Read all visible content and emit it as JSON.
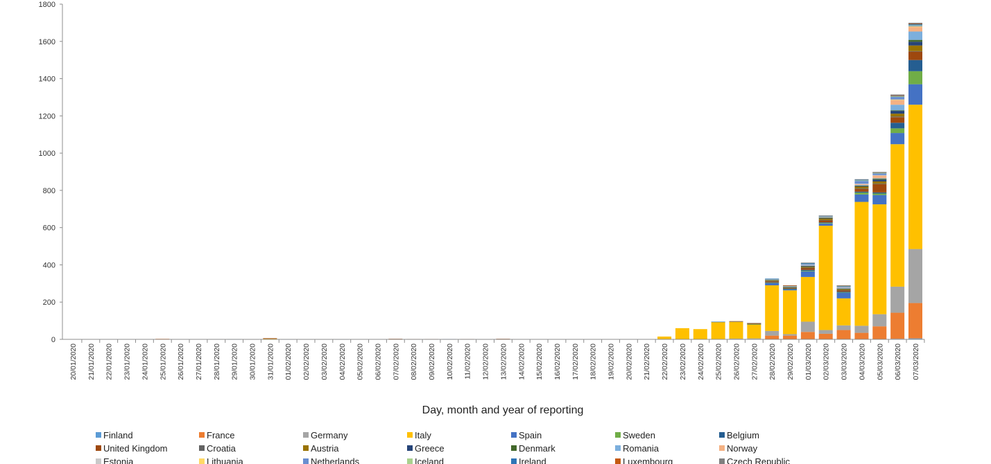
{
  "chart_data": {
    "type": "bar",
    "stacked": true,
    "title": "",
    "xlabel": "Day, month and year of reporting",
    "ylabel": "",
    "ylim": [
      0,
      1800
    ],
    "yticks": [
      0,
      200,
      400,
      600,
      800,
      1000,
      1200,
      1400,
      1600,
      1800
    ],
    "grid": false,
    "legend_position": "bottom",
    "categories": [
      "20/01/2020",
      "21/01/2020",
      "22/01/2020",
      "23/01/2020",
      "24/01/2020",
      "25/01/2020",
      "26/01/2020",
      "27/01/2020",
      "28/01/2020",
      "29/01/2020",
      "30/01/2020",
      "31/01/2020",
      "01/02/2020",
      "02/02/2020",
      "03/02/2020",
      "04/02/2020",
      "05/02/2020",
      "06/02/2020",
      "07/02/2020",
      "08/02/2020",
      "09/02/2020",
      "10/02/2020",
      "11/02/2020",
      "12/02/2020",
      "13/02/2020",
      "14/02/2020",
      "15/02/2020",
      "16/02/2020",
      "17/02/2020",
      "18/02/2020",
      "19/02/2020",
      "20/02/2020",
      "21/02/2020",
      "22/02/2020",
      "23/02/2020",
      "24/02/2020",
      "25/02/2020",
      "26/02/2020",
      "27/02/2020",
      "28/02/2020",
      "29/02/2020",
      "01/03/2020",
      "02/03/2020",
      "03/03/2020",
      "04/03/2020",
      "05/03/2020",
      "06/03/2020",
      "07/03/2020"
    ],
    "series": [
      {
        "name": "Finland",
        "color": "#5b9bd5",
        "values": [
          0,
          0,
          0,
          0,
          0,
          0,
          0,
          0,
          0,
          1,
          0,
          0,
          0,
          0,
          0,
          0,
          0,
          0,
          0,
          0,
          0,
          0,
          0,
          0,
          0,
          0,
          0,
          0,
          0,
          0,
          0,
          0,
          0,
          0,
          0,
          0,
          0,
          0,
          0,
          0,
          0,
          0,
          0,
          0,
          0,
          0,
          3,
          5
        ]
      },
      {
        "name": "France",
        "color": "#ed7d31",
        "values": [
          0,
          0,
          0,
          0,
          0,
          3,
          0,
          0,
          0,
          0,
          0,
          0,
          0,
          0,
          0,
          0,
          0,
          0,
          0,
          0,
          0,
          0,
          0,
          0,
          0,
          0,
          0,
          0,
          0,
          0,
          0,
          0,
          0,
          0,
          0,
          0,
          2,
          2,
          2,
          20,
          20,
          40,
          30,
          50,
          35,
          70,
          140,
          190
        ]
      },
      {
        "name": "Germany",
        "color": "#a5a5a5",
        "values": [
          0,
          0,
          0,
          0,
          0,
          0,
          0,
          0,
          2,
          1,
          1,
          2,
          0,
          1,
          1,
          0,
          0,
          0,
          1,
          1,
          1,
          1,
          1,
          1,
          1,
          0,
          0,
          0,
          0,
          0,
          0,
          0,
          0,
          0,
          0,
          0,
          0,
          2,
          3,
          25,
          8,
          55,
          20,
          25,
          38,
          65,
          140,
          290
        ]
      },
      {
        "name": "Italy",
        "color": "#ffc000",
        "values": [
          0,
          0,
          0,
          0,
          0,
          0,
          0,
          0,
          0,
          0,
          0,
          2,
          0,
          0,
          0,
          0,
          0,
          0,
          0,
          0,
          0,
          0,
          0,
          0,
          0,
          0,
          0,
          0,
          0,
          0,
          0,
          0,
          0,
          15,
          60,
          55,
          92,
          92,
          75,
          245,
          235,
          240,
          560,
          145,
          665,
          590,
          765,
          775
        ]
      },
      {
        "name": "Spain",
        "color": "#4472c4",
        "values": [
          0,
          0,
          0,
          0,
          0,
          0,
          0,
          0,
          0,
          0,
          0,
          0,
          1,
          0,
          0,
          0,
          0,
          0,
          0,
          0,
          0,
          1,
          0,
          0,
          0,
          0,
          0,
          0,
          0,
          0,
          0,
          0,
          0,
          0,
          0,
          0,
          1,
          1,
          2,
          12,
          6,
          30,
          12,
          32,
          40,
          50,
          60,
          110
        ]
      },
      {
        "name": "Sweden",
        "color": "#70ad47",
        "values": [
          0,
          0,
          0,
          0,
          0,
          0,
          0,
          0,
          0,
          0,
          0,
          0,
          0,
          0,
          0,
          0,
          0,
          0,
          0,
          0,
          0,
          0,
          0,
          0,
          0,
          0,
          0,
          0,
          0,
          0,
          0,
          0,
          0,
          0,
          0,
          0,
          0,
          0,
          1,
          3,
          2,
          3,
          4,
          2,
          10,
          8,
          25,
          70
        ]
      },
      {
        "name": "Belgium",
        "color": "#255e91",
        "values": [
          0,
          0,
          0,
          0,
          0,
          0,
          0,
          0,
          0,
          0,
          0,
          0,
          0,
          0,
          0,
          1,
          0,
          0,
          0,
          0,
          0,
          0,
          0,
          0,
          0,
          0,
          0,
          0,
          0,
          0,
          0,
          0,
          0,
          0,
          0,
          0,
          0,
          0,
          0,
          1,
          1,
          5,
          2,
          2,
          5,
          6,
          30,
          60
        ]
      },
      {
        "name": "United Kingdom",
        "color": "#9e480e",
        "values": [
          0,
          0,
          0,
          0,
          0,
          0,
          0,
          0,
          0,
          0,
          0,
          2,
          0,
          0,
          0,
          0,
          0,
          0,
          2,
          1,
          1,
          0,
          1,
          0,
          2,
          0,
          0,
          0,
          0,
          0,
          0,
          0,
          0,
          0,
          0,
          0,
          0,
          0,
          2,
          5,
          4,
          10,
          12,
          8,
          15,
          45,
          30,
          45
        ]
      },
      {
        "name": "Croatia",
        "color": "#636363",
        "values": [
          0,
          0,
          0,
          0,
          0,
          0,
          0,
          0,
          0,
          0,
          0,
          0,
          0,
          0,
          0,
          0,
          0,
          0,
          0,
          0,
          0,
          0,
          0,
          0,
          0,
          0,
          0,
          0,
          0,
          0,
          0,
          0,
          0,
          0,
          0,
          0,
          0,
          0,
          0,
          2,
          1,
          2,
          1,
          1,
          2,
          2,
          4,
          3
        ]
      },
      {
        "name": "Austria",
        "color": "#997300",
        "values": [
          0,
          0,
          0,
          0,
          0,
          0,
          0,
          0,
          0,
          0,
          0,
          0,
          0,
          0,
          0,
          0,
          0,
          0,
          0,
          0,
          0,
          0,
          0,
          0,
          0,
          0,
          0,
          0,
          0,
          0,
          0,
          0,
          0,
          0,
          0,
          0,
          0,
          0,
          2,
          3,
          2,
          5,
          8,
          6,
          10,
          12,
          15,
          30
        ]
      },
      {
        "name": "Greece",
        "color": "#264478",
        "values": [
          0,
          0,
          0,
          0,
          0,
          0,
          0,
          0,
          0,
          0,
          0,
          0,
          0,
          0,
          0,
          0,
          0,
          0,
          0,
          0,
          0,
          0,
          0,
          0,
          0,
          0,
          0,
          0,
          0,
          0,
          0,
          0,
          0,
          0,
          0,
          0,
          0,
          1,
          1,
          3,
          2,
          4,
          3,
          2,
          3,
          10,
          15,
          20
        ]
      },
      {
        "name": "Denmark",
        "color": "#43682b",
        "values": [
          0,
          0,
          0,
          0,
          0,
          0,
          0,
          0,
          0,
          0,
          0,
          0,
          0,
          0,
          0,
          0,
          0,
          0,
          0,
          0,
          0,
          0,
          0,
          0,
          0,
          0,
          0,
          0,
          0,
          0,
          0,
          0,
          0,
          0,
          0,
          0,
          0,
          0,
          0,
          1,
          1,
          2,
          2,
          1,
          3,
          5,
          3,
          10
        ]
      },
      {
        "name": "Romania",
        "color": "#7cafdd",
        "values": [
          0,
          0,
          0,
          0,
          0,
          0,
          0,
          0,
          0,
          0,
          0,
          0,
          0,
          0,
          0,
          0,
          0,
          0,
          0,
          0,
          0,
          0,
          0,
          0,
          0,
          0,
          0,
          0,
          0,
          0,
          0,
          0,
          0,
          0,
          0,
          0,
          1,
          0,
          0,
          1,
          1,
          1,
          2,
          1,
          3,
          2,
          30,
          45
        ]
      },
      {
        "name": "Norway",
        "color": "#f4b183",
        "values": [
          0,
          0,
          0,
          0,
          0,
          0,
          0,
          0,
          0,
          0,
          0,
          0,
          0,
          0,
          0,
          0,
          0,
          0,
          0,
          0,
          0,
          0,
          0,
          0,
          0,
          0,
          0,
          0,
          0,
          0,
          0,
          0,
          0,
          0,
          0,
          0,
          0,
          1,
          1,
          1,
          2,
          2,
          2,
          3,
          5,
          15,
          25,
          25
        ]
      },
      {
        "name": "Estonia",
        "color": "#c9c9c9",
        "values": [
          0,
          0,
          0,
          0,
          0,
          0,
          0,
          0,
          0,
          0,
          0,
          0,
          0,
          0,
          0,
          0,
          0,
          0,
          0,
          0,
          0,
          0,
          0,
          0,
          0,
          0,
          0,
          0,
          0,
          0,
          0,
          0,
          0,
          0,
          0,
          0,
          0,
          0,
          1,
          1,
          1,
          1,
          1,
          1,
          2,
          2,
          2,
          2
        ]
      },
      {
        "name": "Lithuania",
        "color": "#ffd966",
        "values": [
          0,
          0,
          0,
          0,
          0,
          0,
          0,
          0,
          0,
          0,
          0,
          0,
          0,
          0,
          0,
          0,
          0,
          0,
          0,
          0,
          0,
          0,
          0,
          0,
          0,
          0,
          0,
          0,
          0,
          0,
          0,
          0,
          0,
          0,
          0,
          0,
          0,
          0,
          0,
          0,
          0,
          0,
          0,
          0,
          0,
          0,
          1,
          1
        ]
      },
      {
        "name": "Netherlands",
        "color": "#698ed0",
        "values": [
          0,
          0,
          0,
          0,
          0,
          0,
          0,
          0,
          0,
          0,
          0,
          0,
          0,
          0,
          0,
          0,
          0,
          0,
          0,
          0,
          0,
          0,
          0,
          0,
          0,
          0,
          0,
          0,
          0,
          0,
          0,
          0,
          0,
          0,
          0,
          0,
          0,
          0,
          0,
          1,
          1,
          5,
          2,
          5,
          15,
          10,
          15,
          5
        ]
      },
      {
        "name": "Iceland",
        "color": "#a9d18e",
        "values": [
          0,
          0,
          0,
          0,
          0,
          0,
          0,
          0,
          0,
          0,
          0,
          0,
          0,
          0,
          0,
          0,
          0,
          0,
          0,
          0,
          0,
          0,
          0,
          0,
          0,
          0,
          0,
          0,
          0,
          0,
          0,
          0,
          0,
          0,
          0,
          0,
          0,
          0,
          0,
          1,
          1,
          3,
          2,
          2,
          3,
          2,
          2,
          2
        ]
      },
      {
        "name": "Ireland",
        "color": "#2e75b6",
        "values": [
          0,
          0,
          0,
          0,
          0,
          0,
          0,
          0,
          0,
          0,
          0,
          0,
          0,
          0,
          0,
          0,
          0,
          0,
          0,
          0,
          0,
          0,
          0,
          0,
          0,
          0,
          0,
          0,
          0,
          0,
          0,
          0,
          0,
          0,
          0,
          0,
          0,
          0,
          0,
          1,
          1,
          1,
          1,
          2,
          3,
          3,
          4,
          6
        ]
      },
      {
        "name": "Luxembourg",
        "color": "#c55a11",
        "values": [
          0,
          0,
          0,
          0,
          0,
          0,
          0,
          0,
          0,
          0,
          0,
          0,
          0,
          0,
          0,
          0,
          0,
          0,
          0,
          0,
          0,
          0,
          0,
          0,
          0,
          0,
          0,
          0,
          0,
          0,
          0,
          0,
          0,
          0,
          0,
          0,
          0,
          0,
          0,
          0,
          1,
          0,
          0,
          1,
          0,
          1,
          1,
          2
        ]
      },
      {
        "name": "Czech Republic",
        "color": "#7f7f7f",
        "values": [
          0,
          0,
          0,
          0,
          0,
          0,
          0,
          0,
          0,
          0,
          0,
          0,
          0,
          0,
          0,
          0,
          0,
          0,
          0,
          0,
          0,
          0,
          0,
          0,
          0,
          0,
          0,
          0,
          0,
          0,
          0,
          0,
          0,
          0,
          0,
          0,
          0,
          0,
          0,
          0,
          0,
          3,
          1,
          1,
          3,
          1,
          5,
          4
        ]
      }
    ]
  }
}
